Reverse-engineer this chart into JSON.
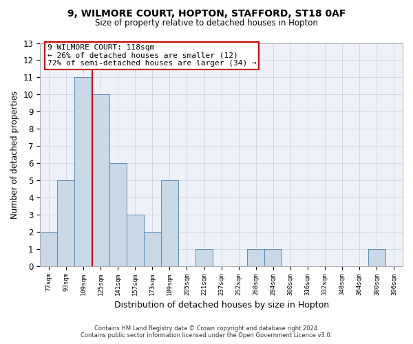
{
  "title": "9, WILMORE COURT, HOPTON, STAFFORD, ST18 0AF",
  "subtitle": "Size of property relative to detached houses in Hopton",
  "xlabel": "Distribution of detached houses by size in Hopton",
  "ylabel": "Number of detached properties",
  "bin_labels": [
    "77sqm",
    "93sqm",
    "109sqm",
    "125sqm",
    "141sqm",
    "157sqm",
    "173sqm",
    "189sqm",
    "205sqm",
    "221sqm",
    "237sqm",
    "252sqm",
    "268sqm",
    "284sqm",
    "300sqm",
    "316sqm",
    "332sqm",
    "348sqm",
    "364sqm",
    "380sqm",
    "396sqm"
  ],
  "bar_values": [
    2,
    5,
    11,
    10,
    6,
    3,
    2,
    5,
    0,
    1,
    0,
    0,
    1,
    1,
    0,
    0,
    0,
    0,
    0,
    1,
    0
  ],
  "bar_color": "#c9d9e8",
  "bar_edge_color": "#5a8ab5",
  "red_line_x": 2.5,
  "property_line_label": "9 WILMORE COURT: 118sqm",
  "annotation_line1": "← 26% of detached houses are smaller (12)",
  "annotation_line2": "72% of semi-detached houses are larger (34) →",
  "annotation_box_color": "#ffffff",
  "annotation_box_edge": "#cc0000",
  "red_line_color": "#cc0000",
  "ylim": [
    0,
    13
  ],
  "yticks": [
    0,
    1,
    2,
    3,
    4,
    5,
    6,
    7,
    8,
    9,
    10,
    11,
    12,
    13
  ],
  "grid_color": "#d0d8e8",
  "footnote1": "Contains HM Land Registry data © Crown copyright and database right 2024.",
  "footnote2": "Contains public sector information licensed under the Open Government Licence v3.0.",
  "background_color": "#ffffff",
  "axes_background": "#eef2f8"
}
